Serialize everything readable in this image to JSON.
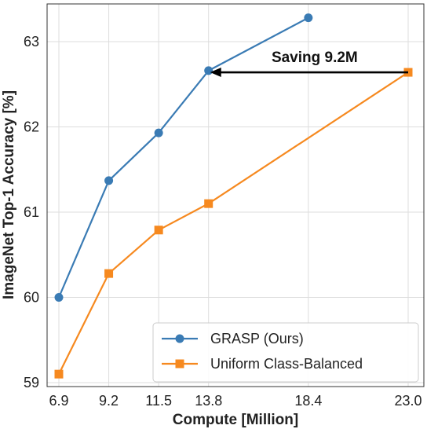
{
  "chart_data": {
    "type": "line",
    "xlabel": "Compute [Million]",
    "ylabel": "ImageNet Top-1 Accuracy [%]",
    "x_ticks": [
      "6.9",
      "9.2",
      "11.5",
      "13.8",
      "18.4",
      "23.0"
    ],
    "y_ticks": [
      "59",
      "60",
      "61",
      "62",
      "63"
    ],
    "xlim": [
      6.9,
      23.0
    ],
    "ylim": [
      58.85,
      63.35
    ],
    "grid": true,
    "legend_position": "bottom-right",
    "series": [
      {
        "name": "GRASP (Ours)",
        "color": "#3a7bb4",
        "marker": "circle",
        "x": [
          6.9,
          9.2,
          11.5,
          13.8,
          18.4
        ],
        "y": [
          60.0,
          61.37,
          61.93,
          62.66,
          63.28
        ]
      },
      {
        "name": "Uniform Class-Balanced",
        "color": "#f6891f",
        "marker": "square",
        "x": [
          6.9,
          9.2,
          11.5,
          13.8,
          23.0
        ],
        "y": [
          59.1,
          60.28,
          60.79,
          61.1,
          62.64
        ]
      }
    ],
    "annotations": [
      {
        "text": "Saving 9.2M",
        "arrow_from": [
          23.0,
          62.64
        ],
        "arrow_to": [
          13.8,
          62.64
        ]
      }
    ]
  }
}
